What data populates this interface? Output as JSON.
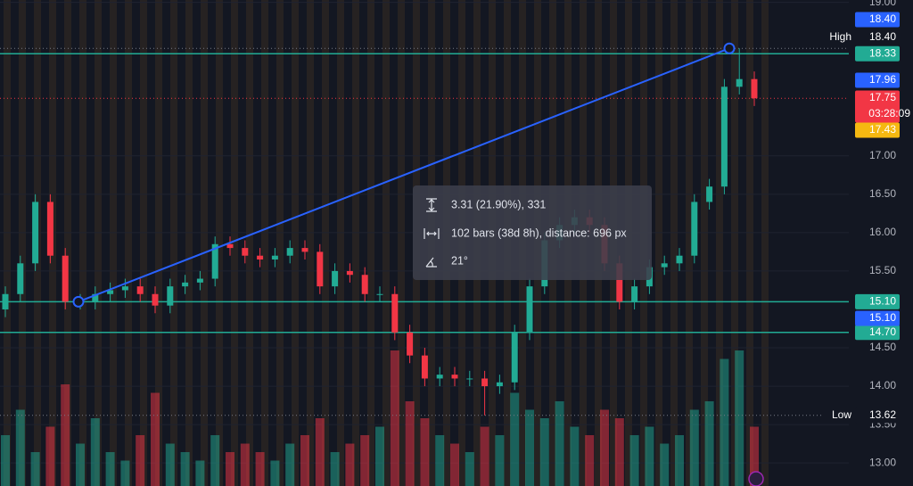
{
  "chart_data": {
    "type": "candlestick",
    "open": [
      15.0,
      15.2,
      15.6,
      16.4,
      15.7,
      15.1,
      15.1,
      15.2,
      15.25,
      15.3,
      15.2,
      15.05,
      15.3,
      15.35,
      15.4,
      15.85,
      15.8,
      15.7,
      15.65,
      15.7,
      15.8,
      15.75,
      15.3,
      15.5,
      15.45,
      15.2,
      15.2,
      14.7,
      14.4,
      14.1,
      14.15,
      14.1,
      14.1,
      14.0,
      14.05,
      14.7,
      15.3,
      15.9,
      16.1,
      16.2,
      16.1,
      15.6,
      15.1,
      15.3,
      15.55,
      15.6,
      15.7,
      16.4,
      16.6,
      17.9,
      18.0
    ],
    "high": [
      15.3,
      15.7,
      16.5,
      16.5,
      15.8,
      15.2,
      15.3,
      15.35,
      15.4,
      15.4,
      15.3,
      15.4,
      15.45,
      15.5,
      15.95,
      15.95,
      15.9,
      15.8,
      15.8,
      15.9,
      15.9,
      15.85,
      15.6,
      15.6,
      15.55,
      15.3,
      15.3,
      14.8,
      14.5,
      14.25,
      14.25,
      14.2,
      14.2,
      14.15,
      14.8,
      15.4,
      16.0,
      16.2,
      16.3,
      16.3,
      16.2,
      15.7,
      15.4,
      15.65,
      15.7,
      15.8,
      16.5,
      16.7,
      18.0,
      18.4,
      18.1
    ],
    "low": [
      14.9,
      15.1,
      15.5,
      15.6,
      15.0,
      15.0,
      15.0,
      15.1,
      15.15,
      15.1,
      14.95,
      14.95,
      15.2,
      15.25,
      15.3,
      15.7,
      15.6,
      15.55,
      15.55,
      15.6,
      15.65,
      15.2,
      15.2,
      15.35,
      15.1,
      15.1,
      14.6,
      14.3,
      14.0,
      14.0,
      14.0,
      14.0,
      13.62,
      13.9,
      13.95,
      14.6,
      15.2,
      15.8,
      16.0,
      16.0,
      15.5,
      15.0,
      15.0,
      15.2,
      15.45,
      15.5,
      15.6,
      16.3,
      16.5,
      17.8,
      17.65
    ],
    "close": [
      15.2,
      15.6,
      16.4,
      15.7,
      15.1,
      15.1,
      15.2,
      15.25,
      15.3,
      15.2,
      15.05,
      15.3,
      15.35,
      15.4,
      15.85,
      15.8,
      15.7,
      15.65,
      15.7,
      15.8,
      15.75,
      15.3,
      15.5,
      15.45,
      15.2,
      15.2,
      14.7,
      14.4,
      14.1,
      14.15,
      14.1,
      14.1,
      14.0,
      14.05,
      14.7,
      15.3,
      15.9,
      16.1,
      16.2,
      16.1,
      15.6,
      15.1,
      15.3,
      15.55,
      15.6,
      15.7,
      16.4,
      16.6,
      17.9,
      18.0,
      17.75
    ],
    "volume": [
      30,
      45,
      20,
      35,
      60,
      25,
      40,
      20,
      15,
      30,
      55,
      25,
      20,
      15,
      30,
      20,
      25,
      20,
      15,
      25,
      30,
      40,
      20,
      25,
      30,
      35,
      80,
      50,
      40,
      30,
      25,
      20,
      35,
      30,
      55,
      45,
      40,
      50,
      35,
      30,
      45,
      40,
      30,
      35,
      25,
      30,
      45,
      50,
      75,
      80,
      35
    ],
    "up_color": "#22ab94",
    "down_color": "#f23645",
    "ylim": [
      12.7,
      19.03
    ],
    "yticks": [
      {
        "value": 19,
        "label": "19.00"
      },
      {
        "value": 17,
        "label": "17.00"
      },
      {
        "value": 16.5,
        "label": "16.50"
      },
      {
        "value": 16,
        "label": "16.00"
      },
      {
        "value": 15.5,
        "label": "15.50"
      },
      {
        "value": 14.5,
        "label": "14.50"
      },
      {
        "value": 14,
        "label": "14.00"
      },
      {
        "value": 13.5,
        "label": "13.50"
      },
      {
        "value": 13,
        "label": "13.00"
      }
    ],
    "hlines": [
      {
        "value": 18.33,
        "label": "18.33",
        "color": "#22ab94"
      },
      {
        "value": 15.1,
        "label": "15.10",
        "color": "#22ab94"
      },
      {
        "value": 14.7,
        "label": "14.70",
        "color": "#22ab94"
      }
    ],
    "price_tags": [
      {
        "value": 18.4,
        "label": "18.40",
        "color": "#2962ff"
      },
      {
        "value": 18.4,
        "label": "18.40",
        "caption": "High",
        "color": "#131722"
      },
      {
        "value": 17.96,
        "label": "17.96",
        "color": "#2962ff"
      },
      {
        "value": 17.75,
        "label": "17.75",
        "countdown": "03:28:09",
        "color": "#f23645"
      },
      {
        "value": 17.43,
        "label": "17.43",
        "color": "#f5b811"
      },
      {
        "value": 15.1,
        "label": "15.10",
        "color": "#2962ff"
      },
      {
        "value": 13.62,
        "label": "13.62",
        "caption": "Low",
        "color": "#131722"
      }
    ],
    "trendline": {
      "start": 15.1,
      "end": 18.4,
      "color": "#2962ff"
    },
    "measure": {
      "price": "3.31 (21.90%), 331",
      "range": "102 bars (38d 8h), distance: 696 px",
      "angle": "21°"
    }
  }
}
